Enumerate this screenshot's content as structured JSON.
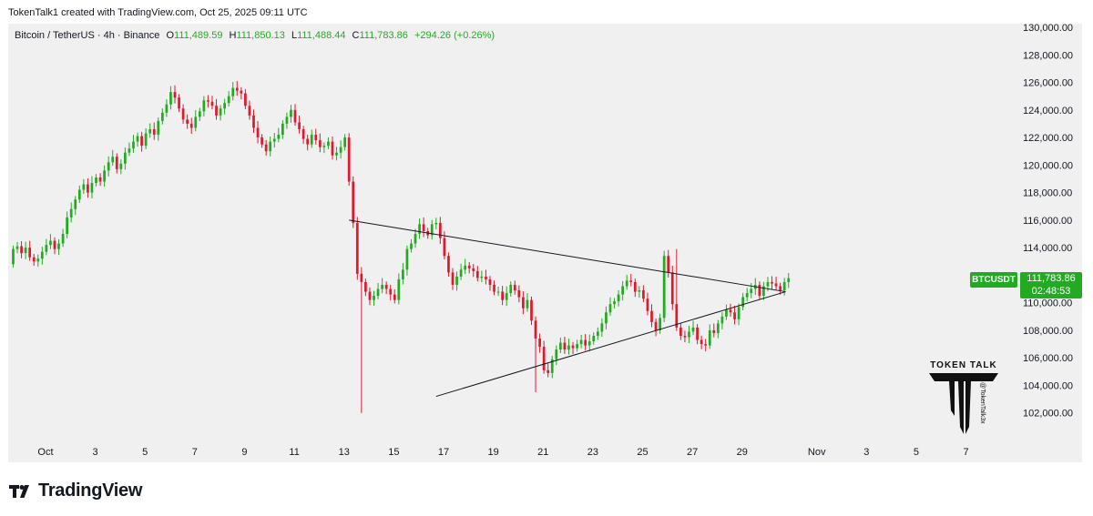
{
  "header": {
    "attribution": "TokenTalk1 created with TradingView.com, Oct 25, 2025 09:11 UTC"
  },
  "legend": {
    "symbol_line": "Bitcoin / TetherUS · 4h · Binance",
    "o_label": "O",
    "o_value": "111,489.59",
    "h_label": "H",
    "h_value": "111,850.13",
    "l_label": "L",
    "l_value": "111,488.44",
    "c_label": "C",
    "c_value": "111,783.86",
    "change": "+294.26 (+0.26%)"
  },
  "price_badge": {
    "symbol": "BTCUSDT",
    "price": "111,783.86",
    "countdown": "02:48:53"
  },
  "footer": {
    "brand": "TradingView"
  },
  "watermark": {
    "title": "TOKEN TALK",
    "handle": "@TokenTalk3x"
  },
  "colors": {
    "up": "#22ab22",
    "down": "#e0182d",
    "panel": "#f0f0f0",
    "line": "#131722"
  },
  "chart_data": {
    "type": "candlestick",
    "title": "Bitcoin / TetherUS · 4h · Binance",
    "ylim": [
      100000,
      130000
    ],
    "y_ticks": [
      "130,000.00",
      "128,000.00",
      "126,000.00",
      "124,000.00",
      "122,000.00",
      "120,000.00",
      "118,000.00",
      "116,000.00",
      "114,000.00",
      "112,000.00",
      "110,000.00",
      "108,000.00",
      "106,000.00",
      "104,000.00",
      "102,000.00"
    ],
    "y_tick_values": [
      130000,
      128000,
      126000,
      124000,
      122000,
      120000,
      118000,
      116000,
      114000,
      112000,
      110000,
      108000,
      106000,
      104000,
      102000
    ],
    "x_ticks": [
      "Oct",
      "3",
      "5",
      "7",
      "9",
      "11",
      "13",
      "15",
      "17",
      "19",
      "21",
      "23",
      "25",
      "27",
      "29",
      "Nov",
      "3",
      "5",
      "7"
    ],
    "x_tick_days": [
      0,
      2,
      4,
      6,
      8,
      10,
      12,
      14,
      16,
      18,
      20,
      22,
      24,
      26,
      28,
      31,
      33,
      35,
      37
    ],
    "x_range_days": [
      -1.5,
      38.7
    ],
    "closes": [
      113900,
      114100,
      113600,
      114000,
      113300,
      113000,
      113200,
      113700,
      114200,
      114500,
      113900,
      114300,
      115000,
      116200,
      116800,
      117500,
      118200,
      118600,
      118000,
      118700,
      119100,
      118800,
      119600,
      120200,
      120600,
      119700,
      120100,
      120900,
      121200,
      121700,
      122100,
      121400,
      122300,
      122600,
      122200,
      123200,
      123800,
      124400,
      125300,
      124900,
      124100,
      123300,
      123000,
      122700,
      123500,
      123900,
      124700,
      124600,
      124300,
      123600,
      124100,
      124500,
      125000,
      125600,
      125400,
      125200,
      124300,
      123600,
      122700,
      122000,
      121500,
      121000,
      121700,
      121900,
      122200,
      123000,
      123500,
      124000,
      123100,
      122600,
      121900,
      121500,
      122200,
      121800,
      121300,
      121400,
      121700,
      120700,
      120900,
      121300,
      122000,
      118800,
      115800,
      112100,
      111500,
      110800,
      110200,
      110500,
      111000,
      111300,
      111000,
      110600,
      110200,
      111700,
      112400,
      113900,
      114300,
      115000,
      115700,
      115200,
      114900,
      115700,
      115800,
      114700,
      113400,
      112200,
      111300,
      111900,
      112400,
      112700,
      112500,
      112300,
      111800,
      111900,
      111700,
      111300,
      110800,
      110800,
      110200,
      110700,
      111300,
      110900,
      110400,
      109600,
      110200,
      108700,
      107400,
      106800,
      105100,
      104900,
      105900,
      106600,
      107100,
      106600,
      106900,
      106700,
      107000,
      107300,
      106900,
      107200,
      107600,
      107900,
      108500,
      109300,
      109900,
      110100,
      110600,
      111200,
      111600,
      111500,
      110800,
      110900,
      110300,
      109400,
      108600,
      108000,
      108900,
      113400,
      112200,
      109900,
      108200,
      107600,
      107500,
      107900,
      108200,
      107300,
      107000,
      106900,
      108000,
      107800,
      108500,
      109000,
      109500,
      109300,
      108800,
      109700,
      110400,
      110700,
      111000,
      111300,
      110500,
      111200,
      111500,
      111400,
      111200,
      110900,
      111500,
      111783
    ]
  }
}
